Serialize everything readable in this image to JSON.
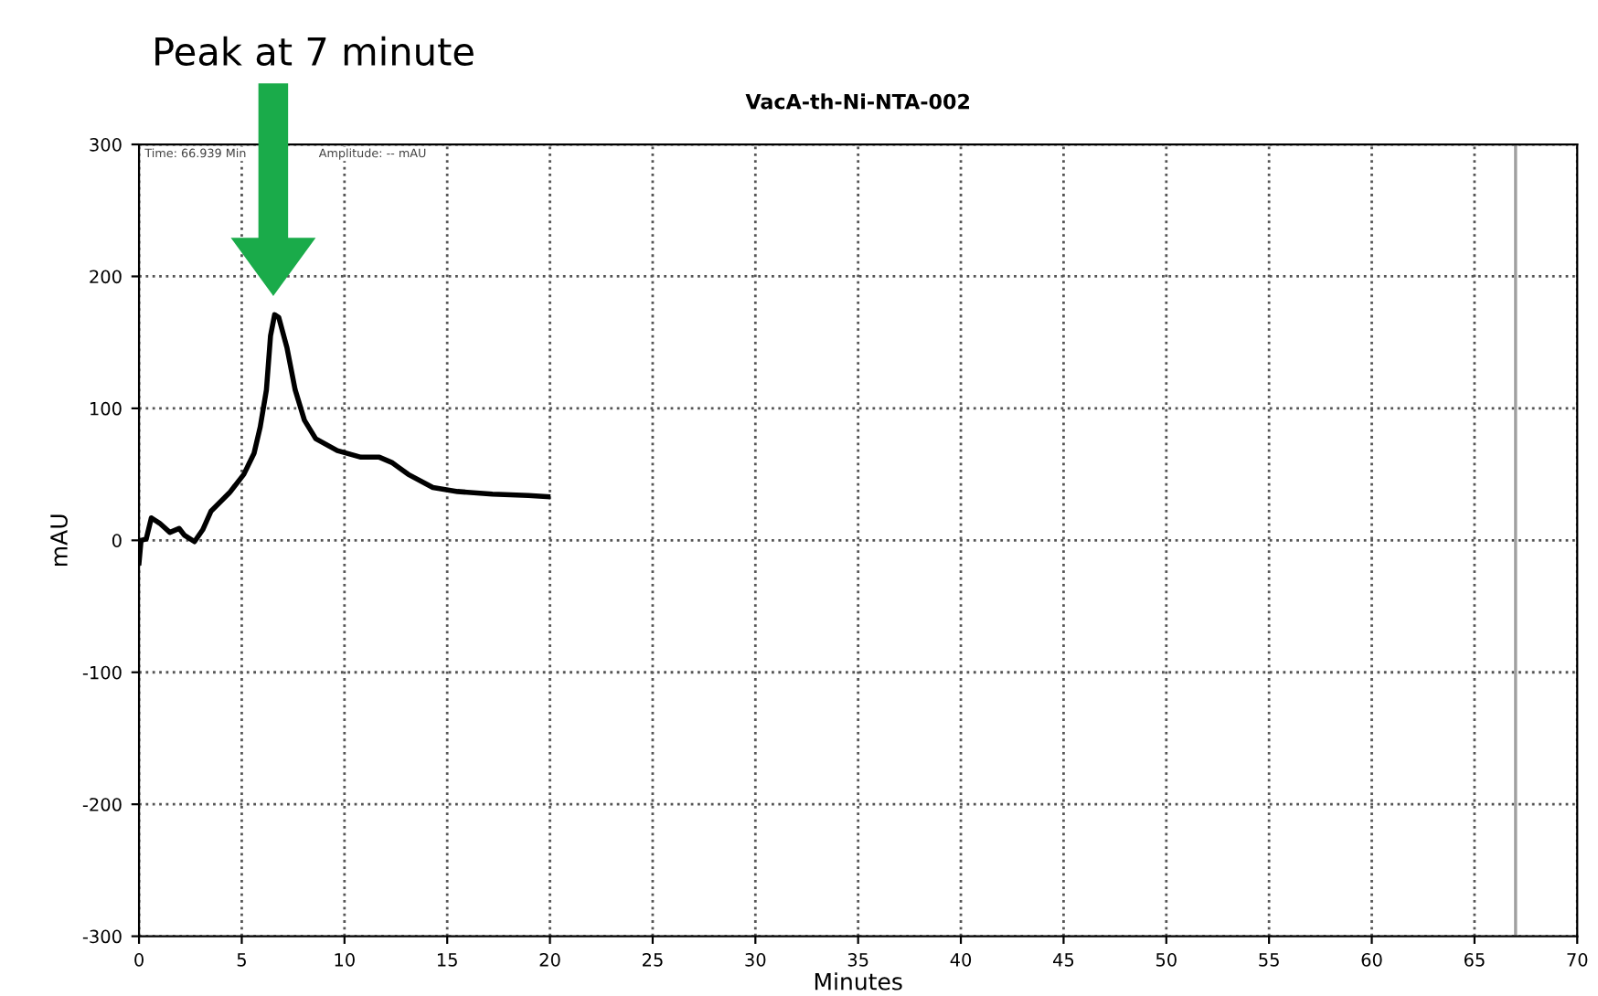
{
  "chart_data": {
    "type": "line",
    "title": "VacA-th-Ni-NTA-002",
    "xlabel": "Minutes",
    "ylabel": "mAU",
    "annotations": [
      "Peak at 7 minute",
      "Time: 66.939 Min",
      "Amplitude: -- mAU"
    ],
    "x": [
      0,
      0.1,
      0.35,
      0.6,
      1.0,
      1.5,
      1.95,
      2.2,
      2.7,
      3.1,
      3.5,
      4.4,
      5.1,
      5.6,
      5.9,
      6.2,
      6.4,
      6.6,
      6.8,
      7.2,
      7.6,
      8.05,
      8.6,
      9.65,
      10.8,
      11.7,
      12.3,
      13.1,
      14.3,
      15.5,
      17.2,
      18.95,
      19.9
    ],
    "series": [
      {
        "color": "#000000",
        "values": [
          -17,
          0,
          1,
          17,
          13,
          6,
          9,
          4,
          -1,
          8,
          22,
          36,
          50,
          66,
          86,
          114,
          155,
          171,
          169,
          146,
          114,
          91,
          77,
          68,
          63,
          63,
          59,
          50,
          40,
          37,
          35,
          34,
          33
        ]
      }
    ],
    "xlim": [
      0,
      70
    ],
    "xticks": [
      0,
      5,
      10,
      15,
      20,
      25,
      30,
      35,
      40,
      45,
      50,
      55,
      60,
      65,
      70
    ],
    "ylim": [
      -300,
      300
    ],
    "yticks": [
      -300,
      -200,
      -100,
      0,
      100,
      200,
      300
    ],
    "ref_lines": [
      {
        "axis": "x",
        "value": 67,
        "color": "#a0a0a0",
        "line_style": "solid"
      }
    ],
    "grid": true,
    "line_style": "solid",
    "marker": "none"
  }
}
